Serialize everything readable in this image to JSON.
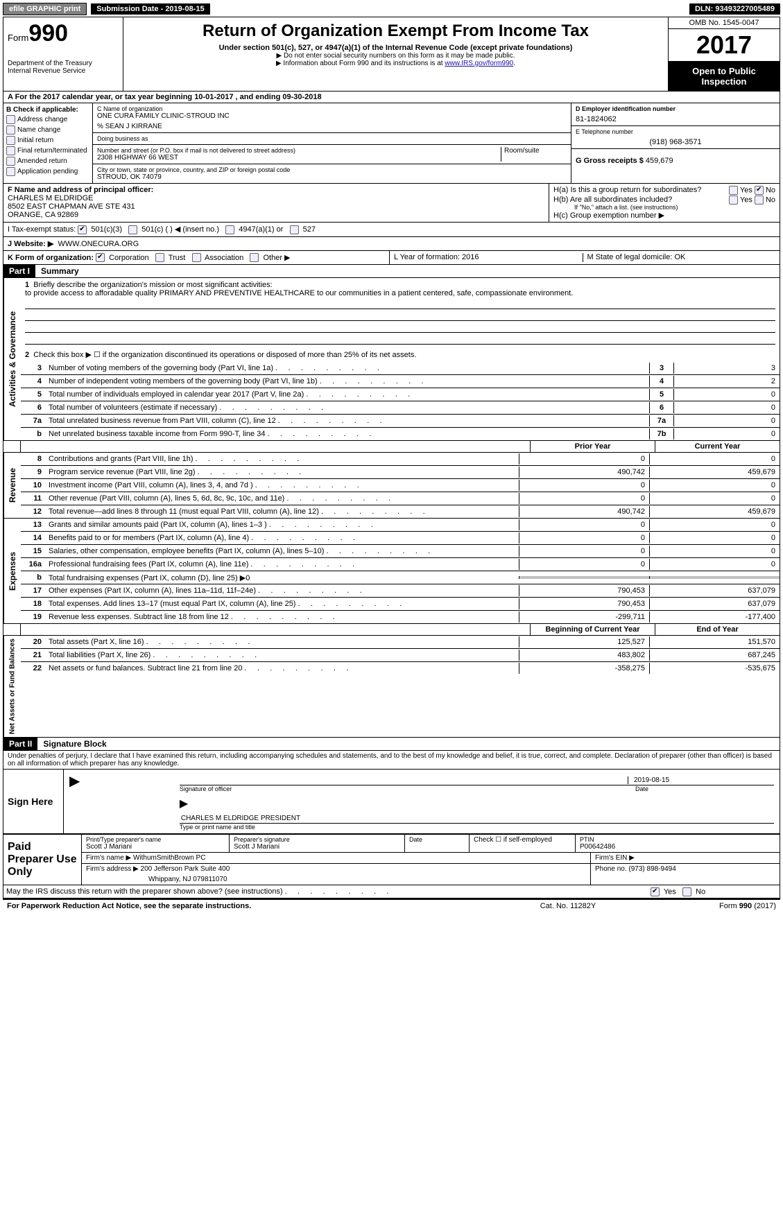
{
  "topbar": {
    "efile": "efile GRAPHIC print",
    "submission": "Submission Date - 2019-08-15",
    "dln": "DLN: 93493227005489"
  },
  "header": {
    "form_label": "Form",
    "form_number": "990",
    "dept": "Department of the Treasury",
    "irs": "Internal Revenue Service",
    "title": "Return of Organization Exempt From Income Tax",
    "subtitle": "Under section 501(c), 527, or 4947(a)(1) of the Internal Revenue Code (except private foundations)",
    "note1": "▶ Do not enter social security numbers on this form as it may be made public.",
    "note2_pre": "▶ Information about Form 990 and its instructions is at ",
    "note2_link": "www.IRS.gov/form990",
    "omb": "OMB No. 1545-0047",
    "year": "2017",
    "open": "Open to Public Inspection"
  },
  "rowA": "A   For the 2017 calendar year, or tax year beginning 10-01-2017         , and ending 09-30-2018",
  "sectionB": {
    "heading": "B Check if applicable:",
    "opts": [
      "Address change",
      "Name change",
      "Initial return",
      "Final return/terminated",
      "Amended return",
      "Application pending"
    ]
  },
  "sectionC": {
    "name_label": "C Name of organization",
    "name": "ONE CURA FAMILY CLINIC-STROUD INC",
    "careof": "% SEAN J KIRRANE",
    "dba_label": "Doing business as",
    "street_label": "Number and street (or P.O. box if mail is not delivered to street address)",
    "street": "2308 HIGHWAY 66 WEST",
    "room": "Room/suite",
    "city_label": "City or town, state or province, country, and ZIP or foreign postal code",
    "city": "STROUD, OK  74079"
  },
  "sectionD": {
    "label": "D Employer identification number",
    "value": "81-1824062"
  },
  "sectionE": {
    "label": "E Telephone number",
    "value": "(918) 968-3571"
  },
  "sectionG": {
    "label": "G Gross receipts $",
    "value": "459,679"
  },
  "sectionF": {
    "label": "F Name and address of principal officer:",
    "name": "CHARLES M ELDRIDGE",
    "addr1": "8502 EAST CHAPMAN AVE STE 431",
    "addr2": "ORANGE, CA  92869"
  },
  "sectionH": {
    "ha": "H(a)   Is this a group return for subordinates?",
    "hb": "H(b)   Are all subordinates included?",
    "hb_note": "If \"No,\" attach a list. (see instructions)",
    "hc": "H(c)   Group exemption number ▶",
    "yes": "Yes",
    "no": "No"
  },
  "sectionI": {
    "label": "I     Tax-exempt status:",
    "opts": [
      "501(c)(3)",
      "501(c) (   ) ◀ (insert no.)",
      "4947(a)(1) or",
      "527"
    ]
  },
  "sectionJ": {
    "label": "J    Website: ▶",
    "value": "WWW.ONECURA.ORG"
  },
  "sectionK": {
    "label": "K Form of organization:",
    "opts": [
      "Corporation",
      "Trust",
      "Association",
      "Other ▶"
    ]
  },
  "sectionLM": {
    "l": "L Year of formation: 2016",
    "m": "M State of legal domicile: OK"
  },
  "part1": {
    "header": "Part I",
    "title": "Summary",
    "q1_label": "1",
    "q1": "Briefly describe the organization's mission or most significant activities:",
    "q1_text": "to provide access to afforadable quality PRIMARY AND PREVENTIVE HEALTHCARE to our communities in a patient centered, safe, compassionate environment.",
    "q2_label": "2",
    "q2": "Check this box ▶ ☐  if the organization discontinued its operations or disposed of more than 25% of its net assets.",
    "lines_gov": [
      {
        "n": "3",
        "t": "Number of voting members of the governing body (Part VI, line 1a)",
        "box": "3",
        "v": "3"
      },
      {
        "n": "4",
        "t": "Number of independent voting members of the governing body (Part VI, line 1b)",
        "box": "4",
        "v": "2"
      },
      {
        "n": "5",
        "t": "Total number of individuals employed in calendar year 2017 (Part V, line 2a)",
        "box": "5",
        "v": "0"
      },
      {
        "n": "6",
        "t": "Total number of volunteers (estimate if necessary)",
        "box": "6",
        "v": "0"
      },
      {
        "n": "7a",
        "t": "Total unrelated business revenue from Part VIII, column (C), line 12",
        "box": "7a",
        "v": "0"
      },
      {
        "n": "b",
        "t": "Net unrelated business taxable income from Form 990-T, line 34",
        "box": "7b",
        "v": "0"
      }
    ],
    "col_prior": "Prior Year",
    "col_current": "Current Year",
    "lines_rev": [
      {
        "n": "8",
        "t": "Contributions and grants (Part VIII, line 1h)",
        "p": "0",
        "c": "0"
      },
      {
        "n": "9",
        "t": "Program service revenue (Part VIII, line 2g)",
        "p": "490,742",
        "c": "459,679"
      },
      {
        "n": "10",
        "t": "Investment income (Part VIII, column (A), lines 3, 4, and 7d )",
        "p": "0",
        "c": "0"
      },
      {
        "n": "11",
        "t": "Other revenue (Part VIII, column (A), lines 5, 6d, 8c, 9c, 10c, and 11e)",
        "p": "0",
        "c": "0"
      },
      {
        "n": "12",
        "t": "Total revenue—add lines 8 through 11 (must equal Part VIII, column (A), line 12)",
        "p": "490,742",
        "c": "459,679"
      }
    ],
    "lines_exp": [
      {
        "n": "13",
        "t": "Grants and similar amounts paid (Part IX, column (A), lines 1–3 )",
        "p": "0",
        "c": "0"
      },
      {
        "n": "14",
        "t": "Benefits paid to or for members (Part IX, column (A), line 4)",
        "p": "0",
        "c": "0"
      },
      {
        "n": "15",
        "t": "Salaries, other compensation, employee benefits (Part IX, column (A), lines 5–10)",
        "p": "0",
        "c": "0"
      },
      {
        "n": "16a",
        "t": "Professional fundraising fees (Part IX, column (A), line 11e)",
        "p": "0",
        "c": "0"
      },
      {
        "n": "b",
        "t": "Total fundraising expenses (Part IX, column (D), line 25) ▶0",
        "p": "",
        "c": "",
        "shade": true
      },
      {
        "n": "17",
        "t": "Other expenses (Part IX, column (A), lines 11a–11d, 11f–24e)",
        "p": "790,453",
        "c": "637,079"
      },
      {
        "n": "18",
        "t": "Total expenses. Add lines 13–17 (must equal Part IX, column (A), line 25)",
        "p": "790,453",
        "c": "637,079"
      },
      {
        "n": "19",
        "t": "Revenue less expenses. Subtract line 18 from line 12",
        "p": "-299,711",
        "c": "-177,400"
      }
    ],
    "col_begin": "Beginning of Current Year",
    "col_end": "End of Year",
    "lines_net": [
      {
        "n": "20",
        "t": "Total assets (Part X, line 16)",
        "p": "125,527",
        "c": "151,570"
      },
      {
        "n": "21",
        "t": "Total liabilities (Part X, line 26)",
        "p": "483,802",
        "c": "687,245"
      },
      {
        "n": "22",
        "t": "Net assets or fund balances. Subtract line 21 from line 20",
        "p": "-358,275",
        "c": "-535,675"
      }
    ],
    "side_gov": "Activities & Governance",
    "side_rev": "Revenue",
    "side_exp": "Expenses",
    "side_net": "Net Assets or Fund Balances"
  },
  "part2": {
    "header": "Part II",
    "title": "Signature Block",
    "penalty": "Under penalties of perjury, I declare that I have examined this return, including accompanying schedules and statements, and to the best of my knowledge and belief, it is true, correct, and complete. Declaration of preparer (other than officer) is based on all information of which preparer has any knowledge.",
    "sign_here": "Sign Here",
    "sig_officer": "Signature of officer",
    "sig_date": "2019-08-15",
    "date_label": "Date",
    "officer_name": "CHARLES M ELDRIDGE  PRESIDENT",
    "type_label": "Type or print name and title",
    "paid": "Paid Preparer Use Only",
    "prep_name_label": "Print/Type preparer's name",
    "prep_name": "Scott J Mariani",
    "prep_sig_label": "Preparer's signature",
    "prep_sig": "Scott J Mariani",
    "prep_date_label": "Date",
    "prep_check": "Check ☐ if self-employed",
    "ptin_label": "PTIN",
    "ptin": "P00642486",
    "firm_name_label": "Firm's name      ▶",
    "firm_name": "WithumSmithBrown PC",
    "firm_ein_label": "Firm's EIN ▶",
    "firm_addr_label": "Firm's address ▶",
    "firm_addr": "200 Jefferson Park Suite 400",
    "firm_addr2": "Whippany, NJ  079811070",
    "firm_phone_label": "Phone no.",
    "firm_phone": "(973) 898-9494",
    "discuss": "May the IRS discuss this return with the preparer shown above? (see instructions)",
    "yes": "Yes",
    "no": "No"
  },
  "footer": {
    "left": "For Paperwork Reduction Act Notice, see the separate instructions.",
    "mid": "Cat. No. 11282Y",
    "right": "Form 990 (2017)"
  }
}
